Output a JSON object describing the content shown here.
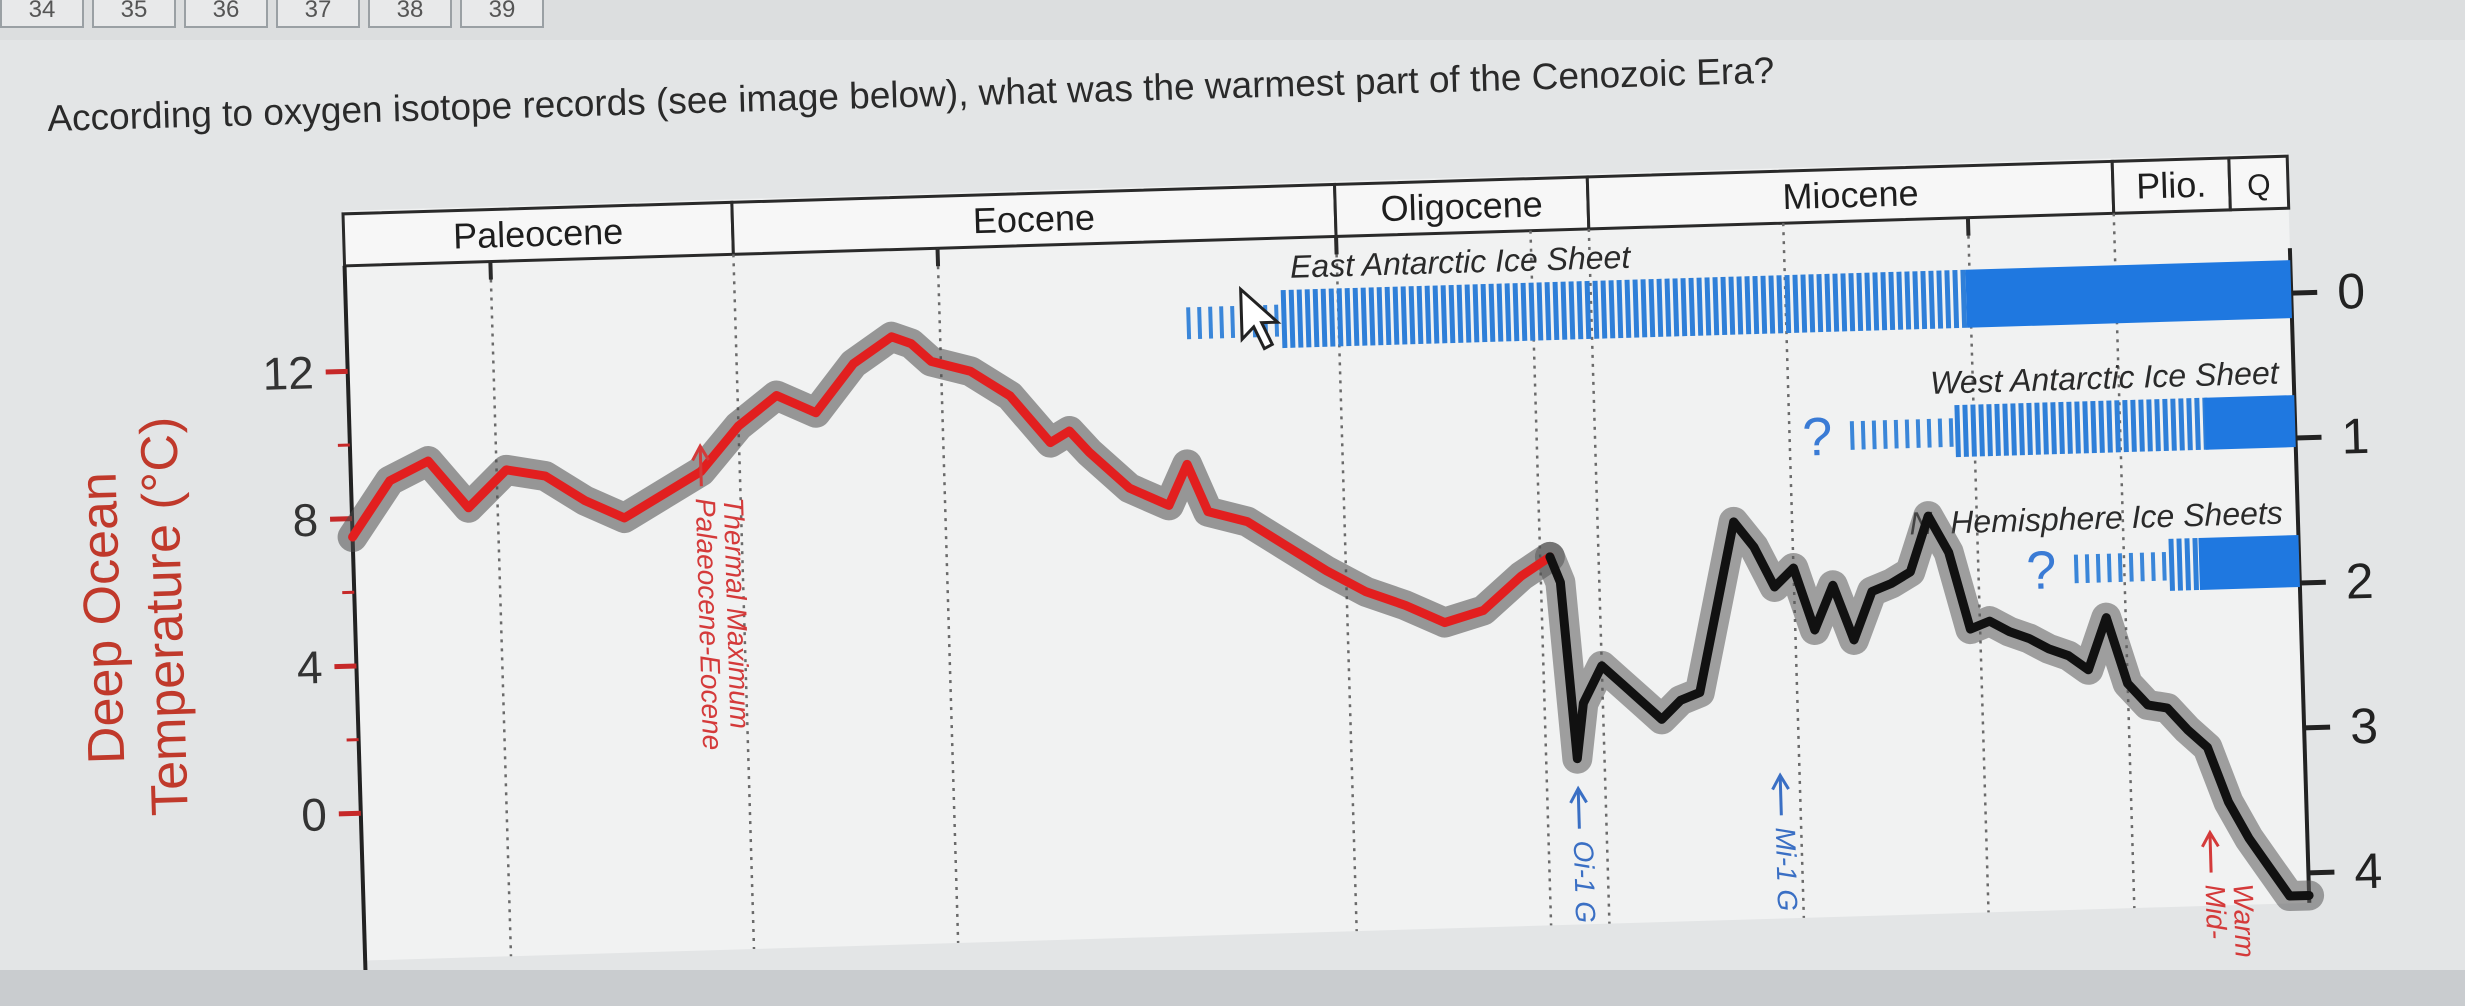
{
  "pagination": {
    "pages": [
      "34",
      "35",
      "36",
      "37",
      "38",
      "39"
    ]
  },
  "question": {
    "text": "According to oxygen isotope records (see image below), what was the warmest part of the Cenozoic Era?"
  },
  "chart_data": {
    "type": "line",
    "title": "",
    "ylabel_left": "Deep Ocean Temperature (°C)",
    "ylabel_left_lines": [
      "Deep Ocean",
      "Temperature (°C)"
    ],
    "left_ticks": [
      "12",
      "8",
      "4",
      "0"
    ],
    "left_tick_values": [
      12,
      8,
      4,
      0
    ],
    "right_ticks": [
      "0",
      "1",
      "2",
      "3",
      "4"
    ],
    "ylim": [
      -4,
      15
    ],
    "xlim": [
      0,
      100
    ],
    "grid": "vertical dotted lines",
    "epochs": [
      {
        "label": "Paleocene",
        "start": 0,
        "end": 20
      },
      {
        "label": "Eocene",
        "start": 20,
        "end": 51
      },
      {
        "label": "Oligocene",
        "start": 51,
        "end": 64
      },
      {
        "label": "Miocene",
        "start": 64,
        "end": 91
      },
      {
        "label": "Plio.",
        "start": 91,
        "end": 97
      },
      {
        "label": "Q",
        "start": 97,
        "end": 100
      }
    ],
    "series": [
      {
        "color": "#e21f1f",
        "x": [
          0,
          2,
          4,
          6,
          8,
          10,
          12,
          14,
          16,
          18,
          20,
          22,
          24,
          26,
          28,
          29,
          30,
          32,
          34,
          36,
          37,
          38,
          40,
          42,
          43,
          44,
          46,
          48,
          50,
          52,
          54,
          56,
          58,
          60,
          61.5
        ],
        "y": [
          7.5,
          9,
          9.5,
          8.2,
          9.2,
          9,
          8.3,
          7.8,
          8.4,
          9,
          10.2,
          11,
          10.5,
          11.8,
          12.5,
          12.3,
          11.8,
          11.5,
          10.8,
          9.5,
          9.8,
          9.2,
          8.2,
          7.7,
          8.8,
          7.5,
          7.2,
          6.5,
          5.8,
          5.2,
          4.8,
          4.3,
          4.6,
          5.5,
          6
        ]
      },
      {
        "color": "#111111",
        "x": [
          61.5,
          62,
          62.6,
          63,
          64,
          65,
          66,
          67,
          68,
          69,
          70,
          71,
          72,
          73,
          74,
          75,
          76,
          77,
          78,
          79,
          80,
          81,
          82,
          83,
          84,
          85,
          86,
          87,
          88,
          89,
          90,
          91,
          92,
          93,
          94,
          95,
          96,
          97,
          98,
          99,
          100
        ],
        "y": [
          6,
          5.3,
          0.5,
          2,
          3,
          2.5,
          2,
          1.5,
          2,
          2.2,
          4.5,
          6.8,
          6.1,
          5,
          5.5,
          3.8,
          5,
          3.5,
          4.8,
          5,
          5.3,
          6.8,
          5.8,
          3.7,
          3.9,
          3.6,
          3.4,
          3.1,
          2.9,
          2.5,
          3.9,
          2.1,
          1.5,
          1.4,
          0.8,
          0.3,
          -1.2,
          -2.2,
          -3,
          -3.8,
          -3.8
        ]
      }
    ],
    "ice_sheets": [
      {
        "label": "East Antarctic Ice Sheet",
        "question": "",
        "row": 0,
        "sparse_start": 82,
        "dense_start": 93,
        "solid_start": 121
      },
      {
        "label": "West Antarctic Ice Sheet",
        "question": "?",
        "row": 1,
        "sparse_start": 101,
        "dense_start": 108,
        "solid_start": 128
      },
      {
        "label": "N. Hemisphere Ice Sheets",
        "question": "?",
        "row": 2,
        "sparse_start": 108,
        "dense_start": 122,
        "solid_start": 124
      }
    ],
    "annotations": [
      {
        "text": [
          "Palaeocene-Eocene",
          "Thermal Maximum"
        ],
        "x": 18,
        "color": "#d43a3a",
        "y": 10.5
      },
      {
        "text": [
          "Oi-1 G"
        ],
        "x": 62.6,
        "color": "#3a6fc4",
        "y": 0.5
      },
      {
        "text": [
          "Mi-1 G"
        ],
        "x": 73,
        "color": "#3a6fc4",
        "y": 0.7
      },
      {
        "text": [
          "Mid-",
          "Warm"
        ],
        "x": 95,
        "color": "#d43a3a",
        "y": -1.2
      }
    ]
  }
}
